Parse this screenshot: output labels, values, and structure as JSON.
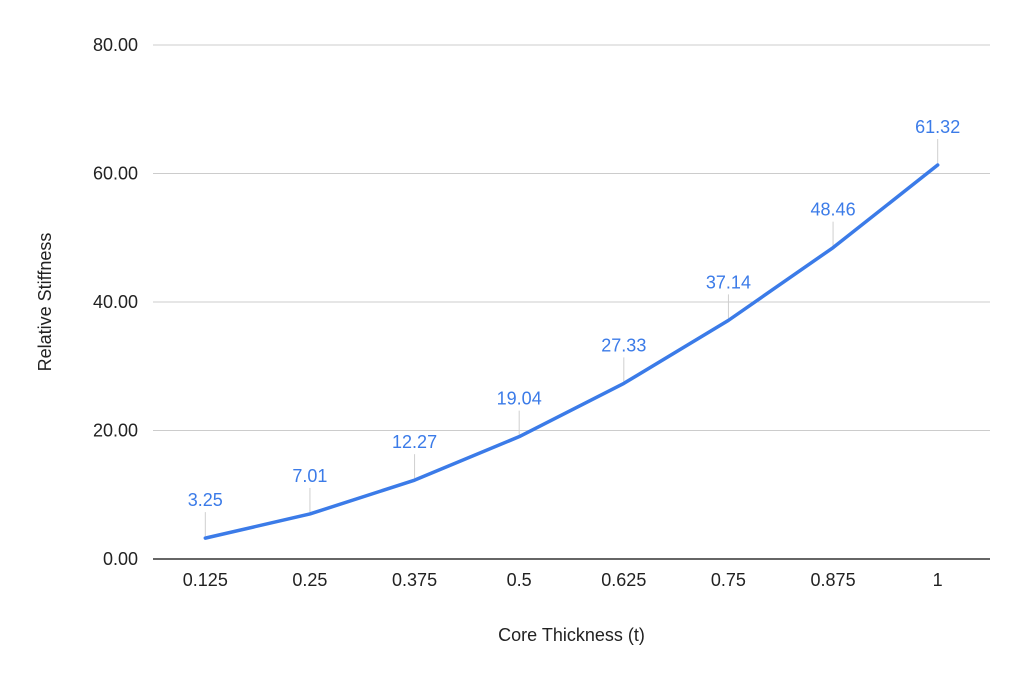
{
  "chart_data": {
    "type": "line",
    "categories": [
      "0.125",
      "0.25",
      "0.375",
      "0.5",
      "0.625",
      "0.75",
      "0.875",
      "1"
    ],
    "series": [
      {
        "values": [
          3.25,
          7.01,
          12.27,
          19.04,
          27.33,
          37.14,
          48.46,
          61.32
        ],
        "labels": [
          "3.25",
          "7.01",
          "12.27",
          "19.04",
          "27.33",
          "37.14",
          "48.46",
          "61.32"
        ],
        "color": "#3b7be8"
      }
    ],
    "title": "",
    "xlabel": "Core Thickness (t)",
    "ylabel": "Relative Stiffness",
    "ylim": [
      0,
      80
    ],
    "yticks": [
      "0.00",
      "20.00",
      "40.00",
      "60.00",
      "80.00"
    ],
    "ytick_values": [
      0,
      20,
      40,
      60,
      80
    ],
    "grid": true,
    "legend": "none",
    "label_color": "#3b7be8",
    "grid_color": "#cccccc",
    "axis_color": "#333333"
  }
}
